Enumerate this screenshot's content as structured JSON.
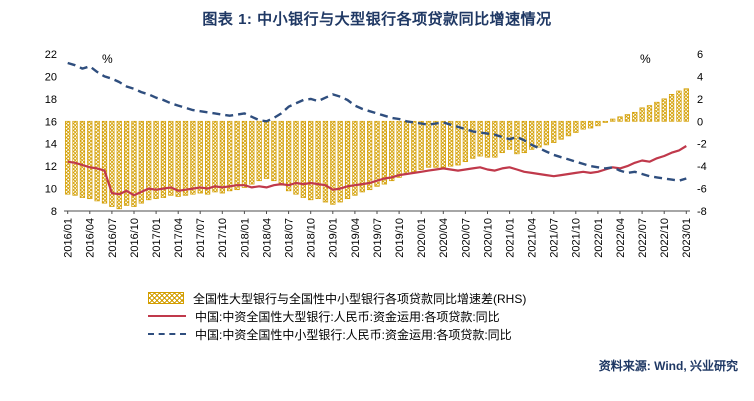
{
  "page": {
    "title": "图表 1:  中小银行与大型银行各项贷款同比增速情况",
    "source": "资料来源: Wind, 兴业研究"
  },
  "colors": {
    "title_navy": "#1F3864",
    "bar_gold": "#D39E00",
    "line_red": "#C0394B",
    "line_blue": "#2F4E7E",
    "axis_text": "#000000"
  },
  "chart_data": {
    "type": "combo",
    "title": "图表 1:  中小银行与大型银行各项贷款同比增速情况",
    "x_tick_labels": [
      "2016/01",
      "2016/04",
      "2016/07",
      "2016/10",
      "2017/01",
      "2017/04",
      "2017/07",
      "2017/10",
      "2018/01",
      "2018/04",
      "2018/07",
      "2018/10",
      "2019/01",
      "2019/04",
      "2019/07",
      "2019/10",
      "2020/01",
      "2020/04",
      "2020/07",
      "2020/10",
      "2021/01",
      "2021/04",
      "2021/07",
      "2021/10",
      "2022/01",
      "2022/04",
      "2022/07",
      "2022/10",
      "2023/01"
    ],
    "points_per_tick": 3,
    "frequency": "monthly",
    "left_axis": {
      "min": 8,
      "max": 22,
      "step": 2,
      "unit": "%"
    },
    "right_axis": {
      "min": -8,
      "max": 6,
      "step": 2,
      "unit": "%"
    },
    "grid": false,
    "legend_position": "bottom",
    "series": [
      {
        "name": "全国性大型银行与全国性中小型银行各项贷款同比增速差(RHS)",
        "type": "bar",
        "axis": "right",
        "color": "#D39E00",
        "values": [
          -6.5,
          -6.6,
          -6.8,
          -6.9,
          -7.1,
          -7.3,
          -7.6,
          -7.8,
          -7.5,
          -7.6,
          -7.3,
          -7.0,
          -6.9,
          -6.8,
          -6.6,
          -6.7,
          -6.6,
          -6.5,
          -6.4,
          -6.5,
          -6.3,
          -6.4,
          -6.2,
          -6.1,
          -5.9,
          -5.6,
          -5.3,
          -5.1,
          -5.3,
          -5.7,
          -6.2,
          -6.5,
          -6.8,
          -7.0,
          -6.9,
          -7.2,
          -7.4,
          -7.2,
          -6.9,
          -6.6,
          -6.3,
          -6.1,
          -5.8,
          -5.6,
          -5.3,
          -5.0,
          -4.7,
          -4.5,
          -4.3,
          -4.1,
          -4.1,
          -4.1,
          -4.0,
          -3.9,
          -3.6,
          -3.3,
          -3.1,
          -3.2,
          -3.2,
          -2.8,
          -2.5,
          -2.9,
          -2.8,
          -2.5,
          -2.3,
          -2.1,
          -1.9,
          -1.6,
          -1.3,
          -1.0,
          -0.7,
          -0.6,
          -0.4,
          -0.1,
          0.2,
          0.4,
          0.6,
          0.8,
          1.2,
          1.4,
          1.7,
          2.0,
          2.4,
          2.7,
          2.9
        ]
      },
      {
        "name": "中国:中资全国性大型银行:人民币:资金运用:各项贷款:同比",
        "type": "line",
        "dash": "solid",
        "axis": "left",
        "color": "#C0394B",
        "values": [
          12.4,
          12.3,
          12.1,
          11.9,
          11.8,
          11.6,
          9.6,
          9.5,
          9.8,
          9.4,
          9.7,
          10.0,
          9.9,
          10.0,
          10.1,
          9.8,
          9.9,
          10.0,
          10.1,
          10.0,
          10.2,
          10.1,
          10.2,
          10.3,
          10.3,
          10.1,
          10.2,
          10.1,
          10.3,
          10.4,
          10.3,
          10.5,
          10.4,
          10.5,
          10.4,
          10.3,
          9.9,
          10.0,
          10.2,
          10.3,
          10.4,
          10.5,
          10.7,
          10.9,
          11.0,
          11.2,
          11.3,
          11.4,
          11.5,
          11.6,
          11.7,
          11.8,
          11.7,
          11.6,
          11.7,
          11.8,
          11.9,
          11.7,
          11.6,
          11.8,
          11.9,
          11.7,
          11.5,
          11.4,
          11.3,
          11.2,
          11.1,
          11.2,
          11.3,
          11.4,
          11.5,
          11.4,
          11.5,
          11.7,
          11.9,
          11.8,
          12.0,
          12.3,
          12.5,
          12.4,
          12.7,
          12.9,
          13.2,
          13.4,
          13.8
        ]
      },
      {
        "name": "中国:中资全国性中小型银行:人民币:资金运用:各项贷款:同比",
        "type": "line",
        "dash": "dashed",
        "axis": "left",
        "color": "#2F4E7E",
        "values": [
          21.2,
          21.0,
          20.7,
          20.9,
          20.4,
          20.0,
          19.8,
          19.5,
          19.1,
          18.9,
          18.6,
          18.4,
          18.1,
          17.9,
          17.6,
          17.4,
          17.2,
          17.0,
          16.9,
          16.8,
          16.7,
          16.6,
          16.5,
          16.6,
          16.7,
          16.4,
          16.1,
          16.0,
          16.3,
          16.7,
          17.3,
          17.6,
          17.9,
          18.0,
          17.8,
          18.1,
          18.4,
          18.2,
          17.9,
          17.4,
          17.1,
          16.9,
          16.7,
          16.5,
          16.3,
          16.2,
          16.0,
          15.9,
          15.8,
          15.7,
          15.8,
          15.9,
          15.7,
          15.5,
          15.3,
          15.1,
          15.0,
          14.9,
          14.8,
          14.6,
          14.4,
          14.6,
          14.3,
          13.9,
          13.6,
          13.3,
          13.0,
          12.8,
          12.6,
          12.4,
          12.2,
          12.0,
          11.9,
          11.8,
          11.9,
          11.6,
          11.4,
          11.5,
          11.3,
          11.1,
          11.0,
          10.9,
          10.8,
          10.7,
          10.9
        ]
      }
    ]
  }
}
